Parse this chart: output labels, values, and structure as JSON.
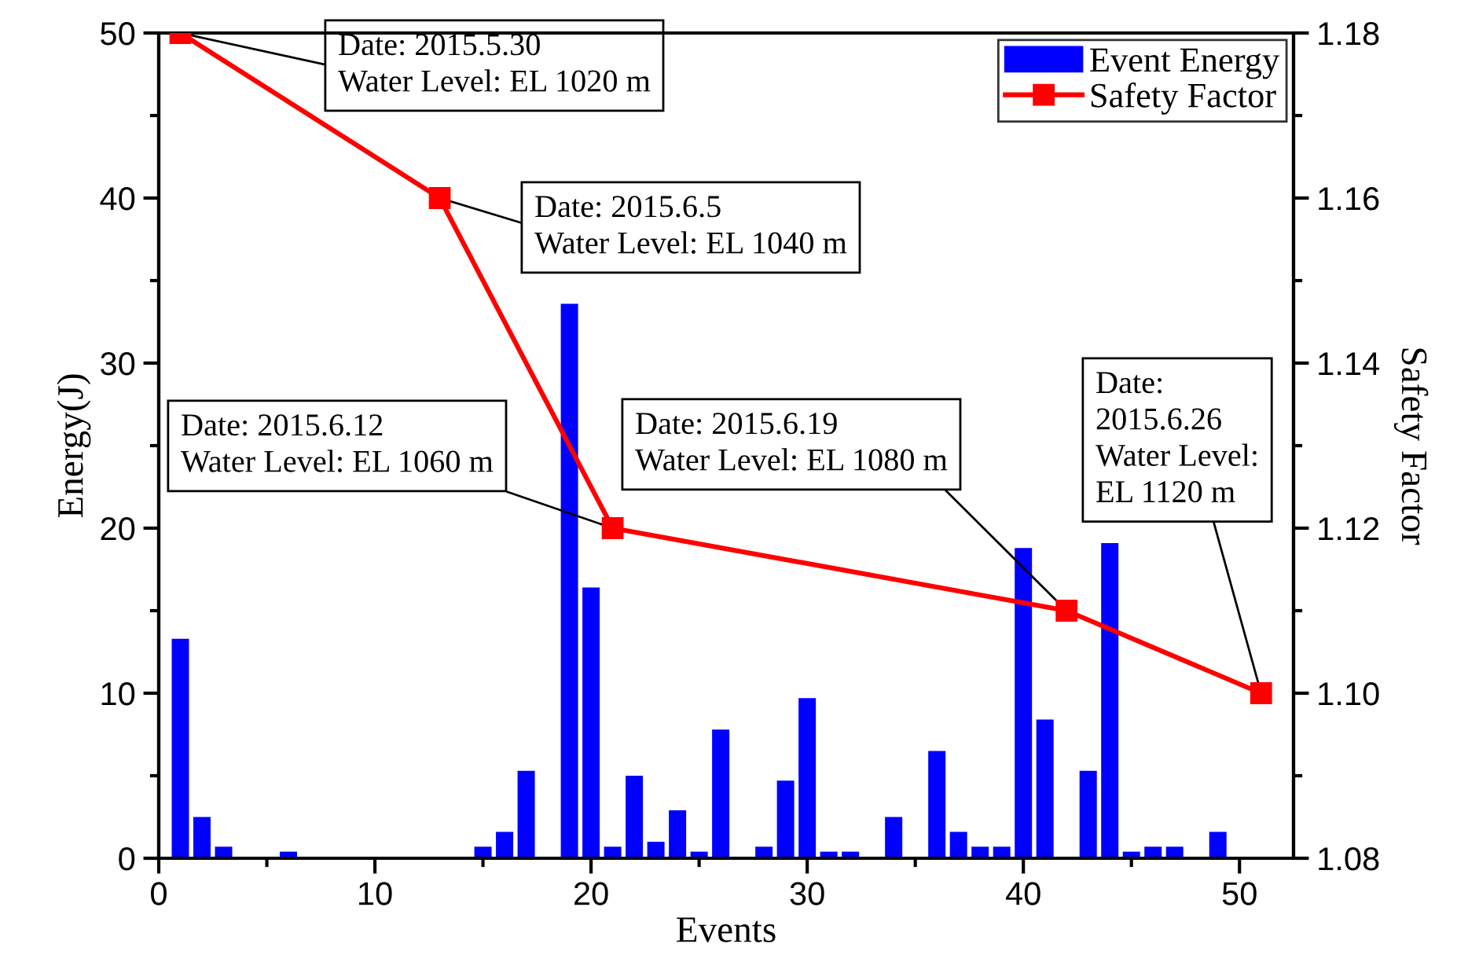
{
  "chart_data": {
    "type": "bar",
    "xlabel": "Events",
    "ylabel": "Energy(J)",
    "y2label": "Safety Factor",
    "x": [
      1,
      2,
      3,
      6,
      15,
      16,
      17,
      19,
      20,
      21,
      22,
      23,
      24,
      25,
      26,
      28,
      29,
      30,
      31,
      32,
      34,
      36,
      37,
      38,
      39,
      40,
      41,
      43,
      44,
      45,
      46,
      47,
      49
    ],
    "xlim": [
      0,
      52.5
    ],
    "xticks": [
      0,
      10,
      20,
      30,
      40,
      50
    ],
    "ylim": [
      0,
      50
    ],
    "yticks": [
      0,
      10,
      20,
      30,
      40,
      50
    ],
    "y2lim": [
      1.08,
      1.18
    ],
    "y2ticks": [
      {
        "value": 1.08,
        "label": "1.08"
      },
      {
        "value": 1.1,
        "label": "1.10"
      },
      {
        "value": 1.12,
        "label": "1.12"
      },
      {
        "value": 1.14,
        "label": "1.14"
      },
      {
        "value": 1.16,
        "label": "1.16"
      },
      {
        "value": 1.18,
        "label": "1.18"
      }
    ],
    "legend": "top right",
    "grid": false,
    "series": [
      {
        "name": "Event Energy",
        "color": "#0000ff",
        "values": [
          13.3,
          2.5,
          0.7,
          0.4,
          0.7,
          1.6,
          5.3,
          33.6,
          16.4,
          0.7,
          5.0,
          1.0,
          2.9,
          0.4,
          7.8,
          0.7,
          4.7,
          9.7,
          0.4,
          0.4,
          2.5,
          6.5,
          1.6,
          0.7,
          0.7,
          18.8,
          8.4,
          5.3,
          19.1,
          0.4,
          0.7,
          0.7,
          1.6
        ]
      },
      {
        "name": "Safety Factor",
        "type": "line",
        "axis": "y2",
        "color": "#ff0000",
        "marker": "square",
        "line_style": "solid",
        "x": [
          1,
          13,
          21,
          42,
          51
        ],
        "values": [
          1.18,
          1.16,
          1.12,
          1.11,
          1.1
        ]
      }
    ],
    "annotations": [
      {
        "text": "Date: 2015.5.30\nWater Level: EL 1020 m",
        "x": 1,
        "y": 50
      },
      {
        "text": "Date: 2015.6.5\nWater Level: EL 1040 m",
        "x": 13,
        "y": 40
      },
      {
        "text": "Date: 2015.6.12\nWater Level: EL 1060 m",
        "x": 21,
        "y": 20
      },
      {
        "text": "Date: 2015.6.19\nWater Level: EL 1080 m",
        "x": 42,
        "y": 15
      },
      {
        "text": "Date:\n2015.6.26\nWater Level:\nEL 1120 m",
        "x": 51,
        "y": 10
      }
    ]
  }
}
